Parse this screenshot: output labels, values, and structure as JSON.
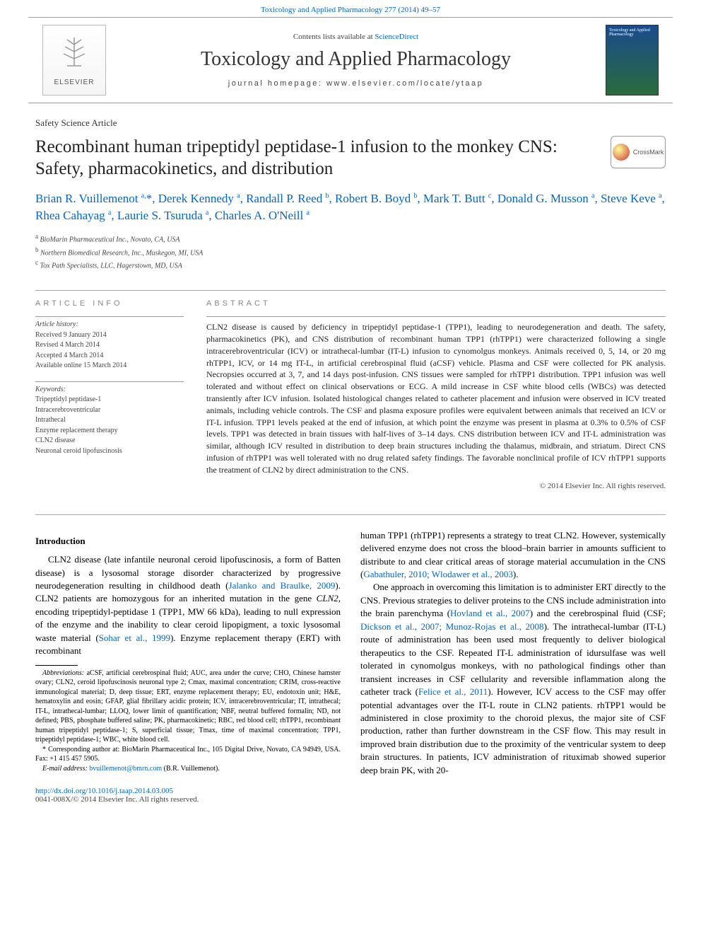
{
  "header": {
    "top_link_text": "Toxicology and Applied Pharmacology 277 (2014) 49–57",
    "contents_prefix": "Contents lists available at ",
    "contents_link": "ScienceDirect",
    "journal_name": "Toxicology and Applied Pharmacology",
    "homepage_prefix": "journal homepage: ",
    "homepage_url": "www.elsevier.com/locate/ytaap",
    "publisher": "ELSEVIER",
    "cover_text": "Toxicology and Applied Pharmacology"
  },
  "article": {
    "type": "Safety Science Article",
    "title": "Recombinant human tripeptidyl peptidase-1 infusion to the monkey CNS: Safety, pharmacokinetics, and distribution",
    "crossmark": "CrossMark",
    "authors_html": "Brian R. Vuillemenot <sup>a,</sup>*, Derek Kennedy <sup>a</sup>, Randall P. Reed <sup>b</sup>, Robert B. Boyd <sup>b</sup>, Mark T. Butt <sup>c</sup>, Donald G. Musson <sup>a</sup>, Steve Keve <sup>a</sup>, Rhea Cahayag <sup>a</sup>, Laurie S. Tsuruda <sup>a</sup>, Charles A. O'Neill <sup>a</sup>",
    "affiliations": [
      {
        "marker": "a",
        "text": "BioMarin Pharmaceutical Inc., Novato, CA, USA"
      },
      {
        "marker": "b",
        "text": "Northern Biomedical Research, Inc., Muskegon, MI, USA"
      },
      {
        "marker": "c",
        "text": "Tox Path Specialists, LLC, Hagerstown, MD, USA"
      }
    ]
  },
  "info": {
    "section_label": "article info",
    "history_label": "Article history:",
    "history": [
      "Received 9 January 2014",
      "Revised 4 March 2014",
      "Accepted 4 March 2014",
      "Available online 15 March 2014"
    ],
    "keywords_label": "Keywords:",
    "keywords": [
      "Tripeptidyl peptidase-1",
      "Intracerebroventricular",
      "Intrathecal",
      "Enzyme replacement therapy",
      "CLN2 disease",
      "Neuronal ceroid lipofuscinosis"
    ]
  },
  "abstract": {
    "section_label": "abstract",
    "text": "CLN2 disease is caused by deficiency in tripeptidyl peptidase-1 (TPP1), leading to neurodegeneration and death. The safety, pharmacokinetics (PK), and CNS distribution of recombinant human TPP1 (rhTPP1) were characterized following a single intracerebroventricular (ICV) or intrathecal-lumbar (IT-L) infusion to cynomolgus monkeys. Animals received 0, 5, 14, or 20 mg rhTPP1, ICV, or 14 mg IT-L, in artificial cerebrospinal fluid (aCSF) vehicle. Plasma and CSF were collected for PK analysis. Necropsies occurred at 3, 7, and 14 days post-infusion. CNS tissues were sampled for rhTPP1 distribution. TPP1 infusion was well tolerated and without effect on clinical observations or ECG. A mild increase in CSF white blood cells (WBCs) was detected transiently after ICV infusion. Isolated histological changes related to catheter placement and infusion were observed in ICV treated animals, including vehicle controls. The CSF and plasma exposure profiles were equivalent between animals that received an ICV or IT-L infusion. TPP1 levels peaked at the end of infusion, at which point the enzyme was present in plasma at 0.3% to 0.5% of CSF levels. TPP1 was detected in brain tissues with half-lives of 3–14 days. CNS distribution between ICV and IT-L administration was similar, although ICV resulted in distribution to deep brain structures including the thalamus, midbrain, and striatum. Direct CNS infusion of rhTPP1 was well tolerated with no drug related safety findings. The favorable nonclinical profile of ICV rhTPP1 supports the treatment of CLN2 by direct administration to the CNS.",
    "copyright": "© 2014 Elsevier Inc. All rights reserved."
  },
  "body": {
    "intro_heading": "Introduction",
    "p1_a": "CLN2 disease (late infantile neuronal ceroid lipofuscinosis, a form of Batten disease) is a lysosomal storage disorder characterized by progressive neurodegeneration resulting in childhood death (",
    "p1_link1": "Jalanko and Braulke, 2009",
    "p1_b": "). CLN2 patients are homozygous for an inherited mutation in the gene ",
    "p1_gene": "CLN2",
    "p1_c": ", encoding tripeptidyl-peptidase 1 (TPP1, MW 66 kDa), leading to null expression of the enzyme and the inability to clear ceroid lipopigment, a toxic lysosomal waste material (",
    "p1_link2": "Sohar et al., 1999",
    "p1_d": "). Enzyme replacement therapy (ERT) with recombinant",
    "p1_e": "human TPP1 (rhTPP1) represents a strategy to treat CLN2. However, systemically delivered enzyme does not cross the blood–brain barrier in amounts sufficient to distribute to and clear critical areas of storage material accumulation in the CNS (",
    "p1_link3": "Gabathuler, 2010; Wlodawer et al., 2003",
    "p1_f": ").",
    "p2_a": "One approach in overcoming this limitation is to administer ERT directly to the CNS. Previous strategies to deliver proteins to the CNS include administration into the brain parenchyma (",
    "p2_link1": "Hovland et al., 2007",
    "p2_b": ") and the cerebrospinal fluid (CSF; ",
    "p2_link2": "Dickson et al., 2007; Munoz-Rojas et al., 2008",
    "p2_c": "). The intrathecal-lumbar (IT-L) route of administration has been used most frequently to deliver biological therapeutics to the CSF. Repeated IT-L administration of idursulfase was well tolerated in cynomolgus monkeys, with no pathological findings other than transient increases in CSF cellularity and reversible inflammation along the catheter track (",
    "p2_link3": "Felice et al., 2011",
    "p2_d": "). However, ICV access to the CSF may offer potential advantages over the IT-L route in CLN2 patients. rhTPP1 would be administered in close proximity to the choroid plexus, the major site of CSF production, rather than further downstream in the CSF flow. This may result in improved brain distribution due to the proximity of the ventricular system to deep brain structures. In patients, ICV administration of rituximab showed superior deep brain PK, with 20-"
  },
  "footnotes": {
    "abbrev_label": "Abbreviations:",
    "abbrev_text": " aCSF, artificial cerebrospinal fluid; AUC, area under the curve; CHO, Chinese hamster ovary; CLN2, ceroid lipofuscinosis neuronal type 2; Cmax, maximal concentration; CRIM, cross-reactive immunological material; D, deep tissue; ERT, enzyme replacement therapy; EU, endotoxin unit; H&E, hematoxylin and eosin; GFAP, glial fibrillary acidic protein; ICV, intracerebroventricular; IT, intrathecal; IT-L, intrathecal-lumbar; LLOQ, lower limit of quantification; NBF, neutral buffered formalin; ND, not defined; PBS, phosphate buffered saline; PK, pharmacokinetic; RBC, red blood cell; rhTPP1, recombinant human tripeptidyl peptidase-1; S, superficial tissue; Tmax, time of maximal concentration; TPP1, tripeptidyl peptidase-1; WBC, white blood cell.",
    "corr_marker": "*",
    "corr_text": " Corresponding author at: BioMarin Pharmaceutical Inc., 105 Digital Drive, Novato, CA 94949, USA. Fax: +1 415 457 5905.",
    "email_label": "E-mail address:",
    "email": "bvuillemenot@bmrn.com",
    "email_suffix": " (B.R. Vuillemenot)."
  },
  "footer": {
    "doi": "http://dx.doi.org/10.1016/j.taap.2014.03.005",
    "issn": "0041-008X/© 2014 Elsevier Inc. All rights reserved."
  },
  "colors": {
    "link": "#0066cc",
    "text": "#000000",
    "muted": "#444444",
    "rule": "#aaaaaa"
  }
}
